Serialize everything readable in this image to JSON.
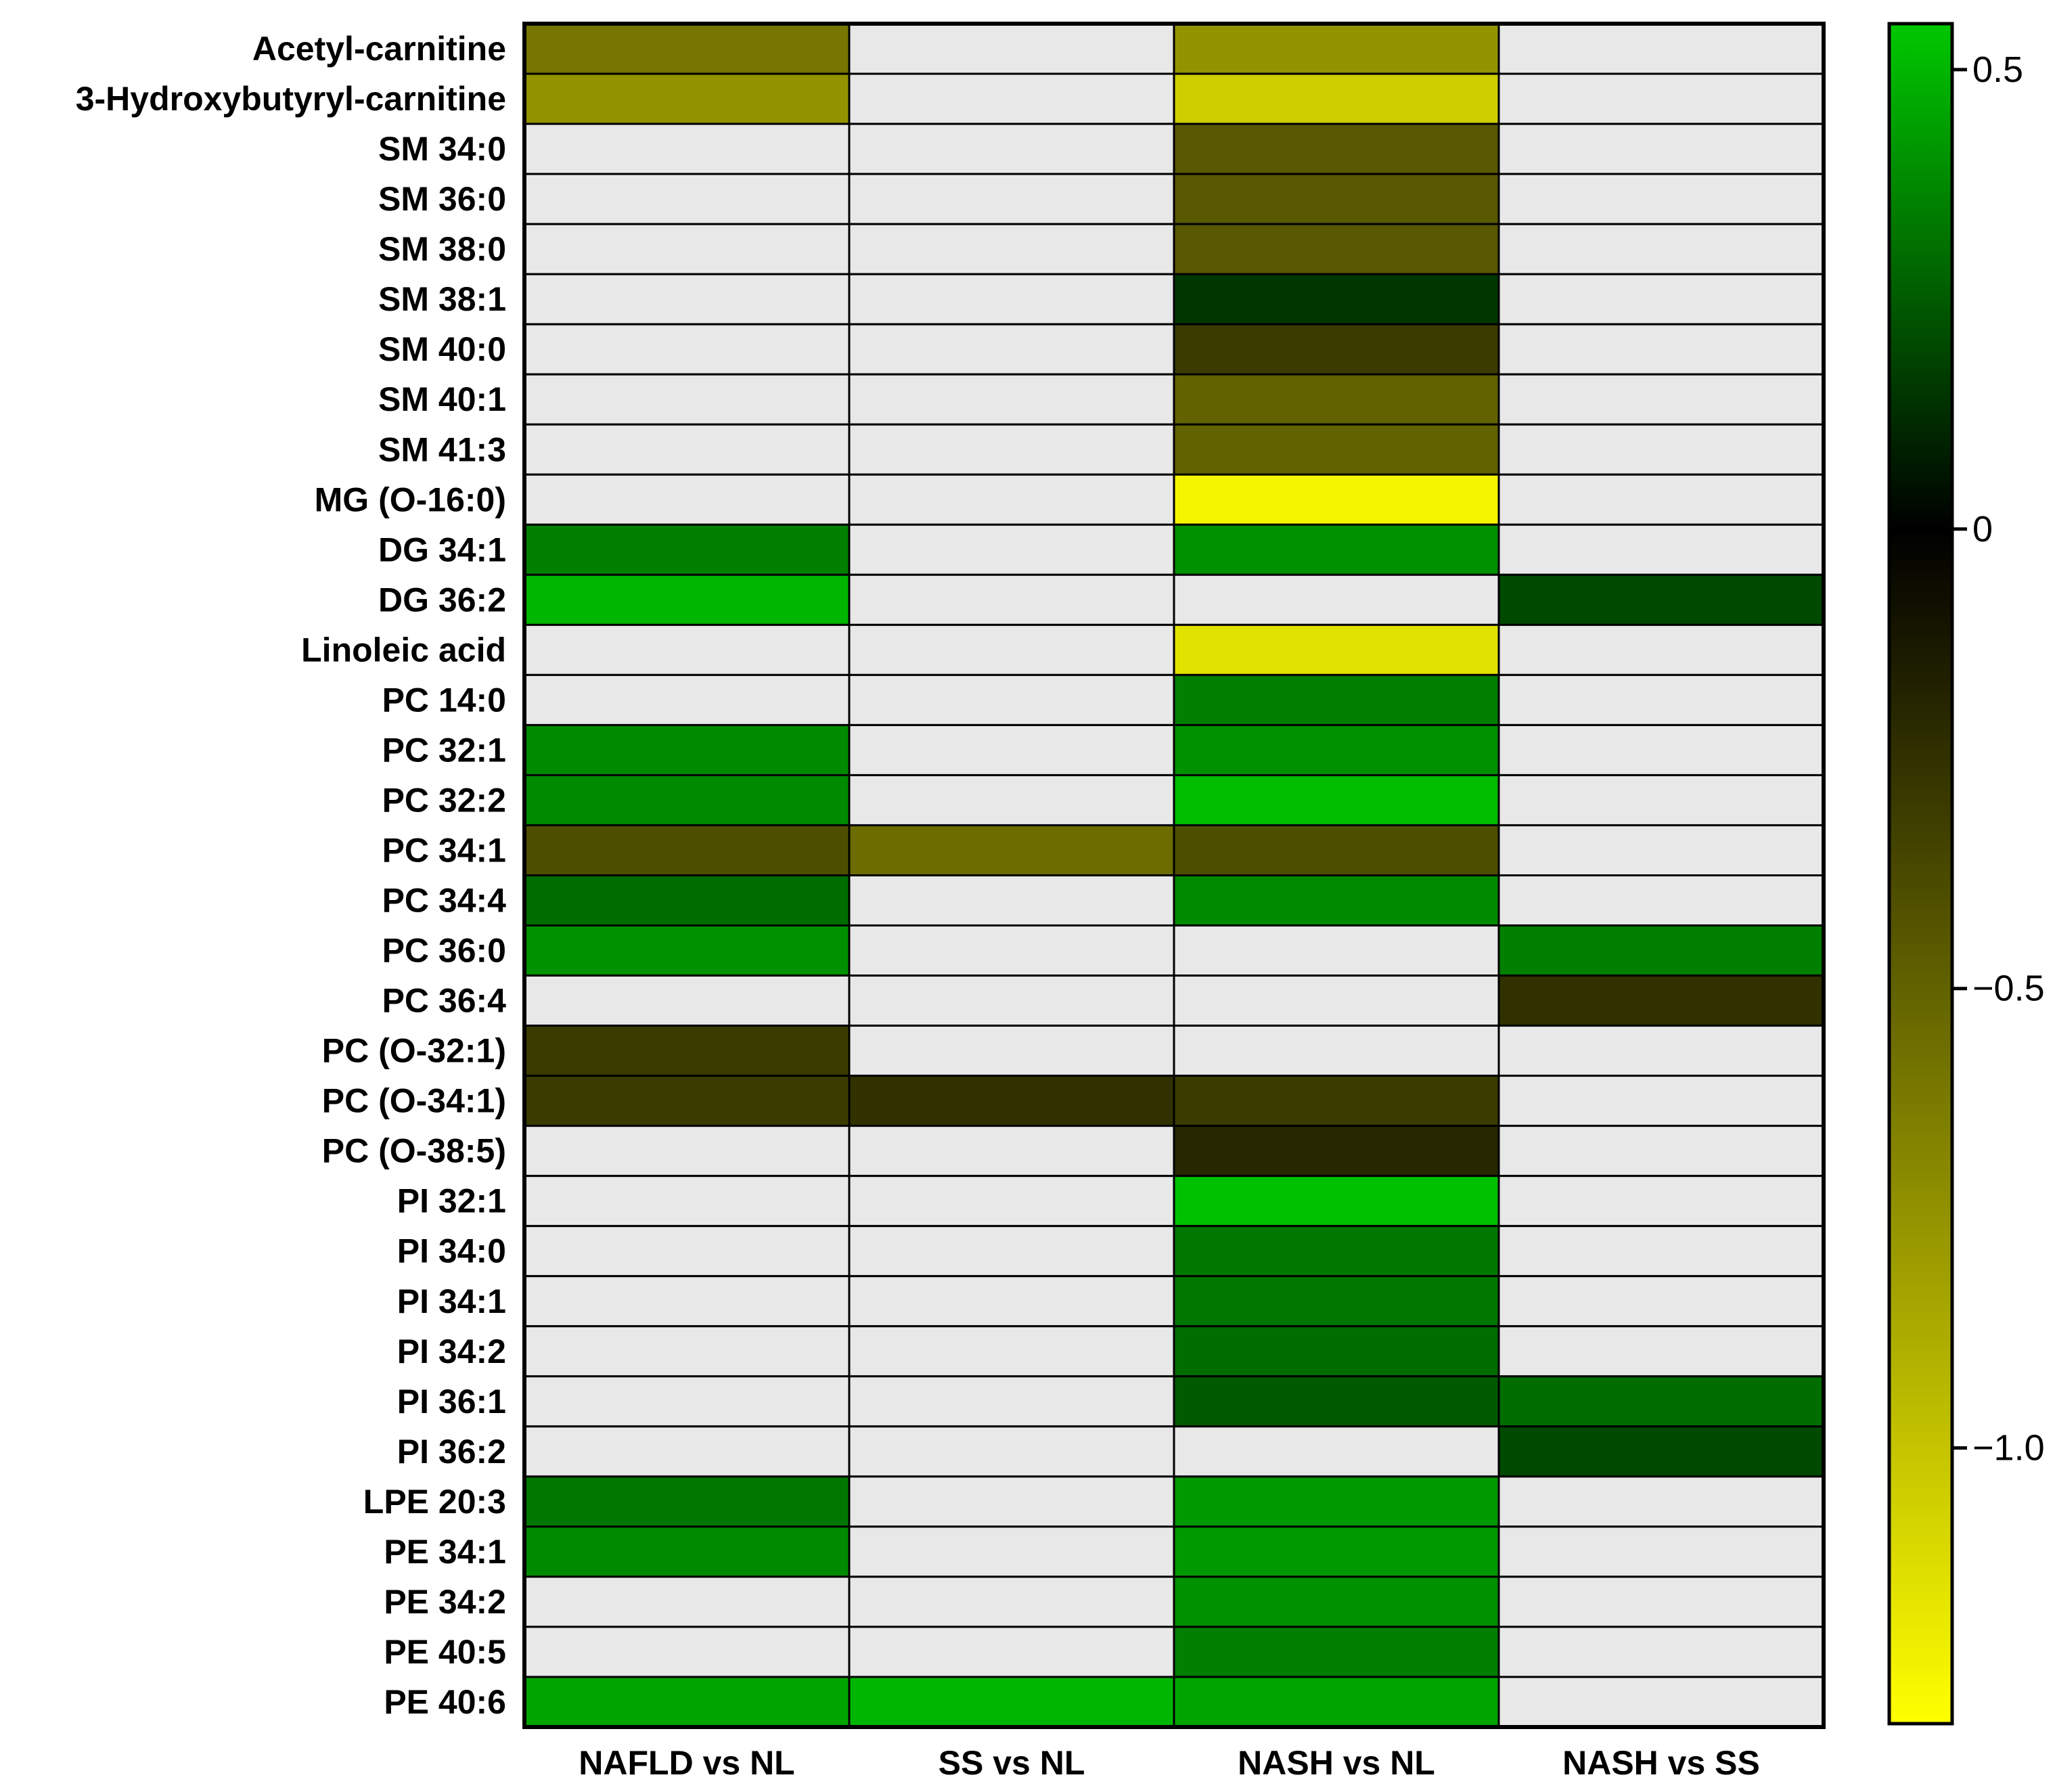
{
  "chart_data": {
    "type": "heatmap",
    "title": "",
    "rows": [
      "Acetyl-carnitine",
      "3-Hydroxybutyryl-carnitine",
      "SM 34:0",
      "SM 36:0",
      "SM 38:0",
      "SM 38:1",
      "SM 40:0",
      "SM 40:1",
      "SM 41:3",
      "MG (O-16:0)",
      "DG 34:1",
      "DG 36:2",
      "Linoleic acid",
      "PC 14:0",
      "PC 32:1",
      "PC 32:2",
      "PC 34:1",
      "PC 34:4",
      "PC 36:0",
      "PC 36:4",
      "PC (O-32:1)",
      "PC (O-34:1)",
      "PC (O-38:5)",
      "PI 32:1",
      "PI 34:0",
      "PI 34:1",
      "PI 34:2",
      "PI 36:1",
      "PI 36:2",
      "LPE 20:3",
      "PE 34:1",
      "PE 34:2",
      "PE 40:5",
      "PE 40:6"
    ],
    "columns": [
      "NAFLD vs NL",
      "SS vs NL",
      "NASH vs NL",
      "NASH vs SS"
    ],
    "values": [
      [
        -0.6,
        null,
        -0.75,
        null
      ],
      [
        -0.75,
        null,
        -1.05,
        null
      ],
      [
        null,
        null,
        -0.45,
        null
      ],
      [
        null,
        null,
        -0.45,
        null
      ],
      [
        null,
        null,
        -0.45,
        null
      ],
      [
        null,
        null,
        0.15,
        null
      ],
      [
        null,
        null,
        -0.3,
        null
      ],
      [
        null,
        null,
        -0.5,
        null
      ],
      [
        null,
        null,
        -0.5,
        null
      ],
      [
        null,
        null,
        -1.25,
        null
      ],
      [
        0.35,
        null,
        0.4,
        null
      ],
      [
        0.5,
        null,
        null,
        0.2
      ],
      [
        null,
        null,
        -1.15,
        null
      ],
      [
        null,
        null,
        0.35,
        null
      ],
      [
        0.38,
        null,
        0.4,
        null
      ],
      [
        0.38,
        null,
        0.52,
        null
      ],
      [
        -0.4,
        -0.55,
        -0.4,
        null
      ],
      [
        0.3,
        null,
        0.38,
        null
      ],
      [
        0.4,
        null,
        null,
        0.35
      ],
      [
        null,
        null,
        null,
        -0.25
      ],
      [
        -0.3,
        null,
        null,
        null
      ],
      [
        -0.3,
        -0.25,
        -0.3,
        null
      ],
      [
        null,
        null,
        -0.2,
        null
      ],
      [
        null,
        null,
        0.53,
        null
      ],
      [
        null,
        null,
        0.33,
        null
      ],
      [
        null,
        null,
        0.33,
        null
      ],
      [
        null,
        null,
        0.3,
        null
      ],
      [
        null,
        null,
        0.25,
        0.3
      ],
      [
        null,
        null,
        null,
        0.2
      ],
      [
        0.33,
        null,
        0.42,
        null
      ],
      [
        0.38,
        null,
        0.42,
        null
      ],
      [
        null,
        null,
        0.4,
        null
      ],
      [
        null,
        null,
        0.35,
        null
      ],
      [
        0.45,
        0.5,
        0.45,
        null
      ]
    ],
    "colorbar": {
      "min": -1.3,
      "max": 0.55,
      "ticks": [
        0.5,
        0,
        -0.5,
        -1.0
      ],
      "tick_labels": [
        "0.5",
        "0",
        "−0.5",
        "−1.0"
      ],
      "colors": {
        "min": "#ffff00",
        "mid": "#000000",
        "max": "#00c800"
      }
    },
    "missing_color": "#e8e8e8",
    "grid_color": "#000000"
  }
}
